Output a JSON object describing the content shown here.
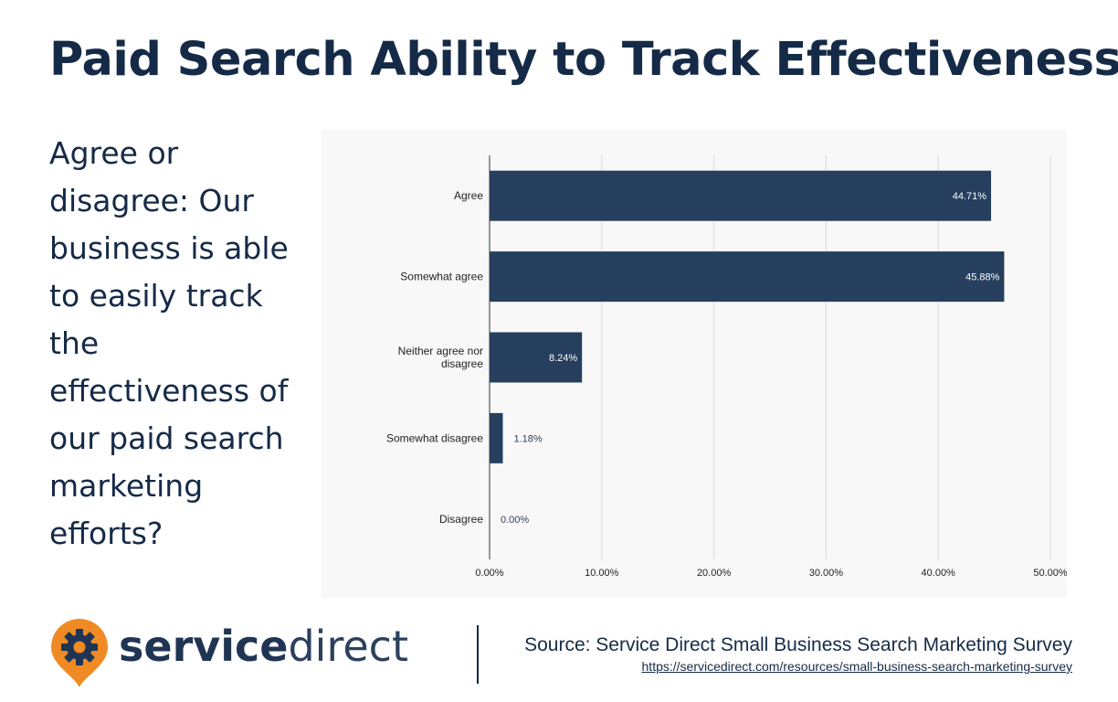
{
  "title": "Paid Search Ability to Track Effectiveness",
  "question": "Agree or disagree: Our business is able to easily track the effectiveness of our paid search marketing efforts?",
  "brand": {
    "name_bold": "service",
    "name_light": "direct",
    "colors": {
      "pin": "#f08a24",
      "text": "#1f3553"
    }
  },
  "source": {
    "text": "Source: Service Direct Small Business Search Marketing Survey",
    "url": "https://servicedirect.com/resources/small-business-search-marketing-survey"
  },
  "colors": {
    "bar": "#263f5e",
    "grid": "#d9d9d9",
    "text": "#152a47"
  },
  "chart_data": {
    "type": "bar",
    "orientation": "horizontal",
    "categories": [
      "Agree",
      "Somewhat agree",
      "Neither agree nor disagree",
      "Somewhat disagree",
      "Disagree"
    ],
    "values": [
      44.71,
      45.88,
      8.24,
      1.18,
      0.0
    ],
    "data_labels": [
      "44.71%",
      "45.88%",
      "8.24%",
      "1.18%",
      "0.00%"
    ],
    "xlim": [
      0,
      50
    ],
    "x_ticks": [
      "0.00%",
      "10.00%",
      "20.00%",
      "30.00%",
      "40.00%",
      "50.00%"
    ],
    "grid": true,
    "legend": "none"
  }
}
